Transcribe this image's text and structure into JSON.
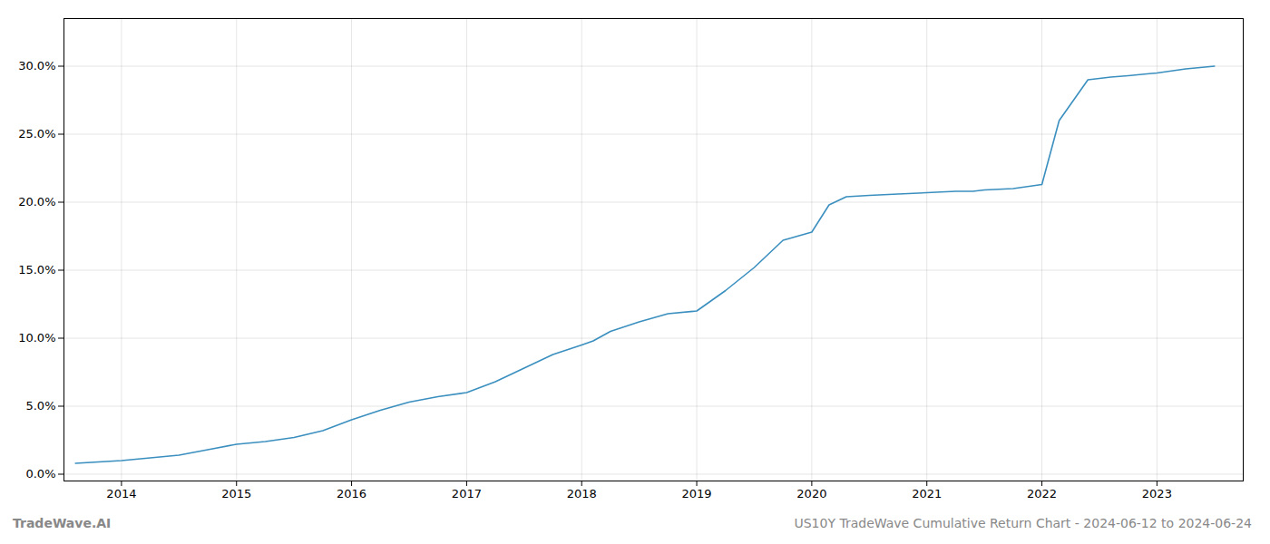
{
  "chart_data": {
    "type": "line",
    "title": "US10Y TradeWave Cumulative Return Chart - 2024-06-12 to 2024-06-24",
    "annotations": [
      "TradeWave.AI"
    ],
    "color": "#3a8fbf",
    "grid": true,
    "x": [
      2013.6,
      2014.0,
      2014.25,
      2014.5,
      2014.75,
      2015.0,
      2015.25,
      2015.5,
      2015.75,
      2016.0,
      2016.25,
      2016.5,
      2016.75,
      2017.0,
      2017.25,
      2017.5,
      2017.75,
      2018.0,
      2018.1,
      2018.25,
      2018.5,
      2018.75,
      2019.0,
      2019.25,
      2019.5,
      2019.75,
      2020.0,
      2020.15,
      2020.3,
      2020.5,
      2020.75,
      2021.0,
      2021.25,
      2021.4,
      2021.5,
      2021.75,
      2022.0,
      2022.15,
      2022.4,
      2022.6,
      2022.75,
      2023.0,
      2023.25,
      2023.5
    ],
    "values": [
      0.008,
      0.01,
      0.012,
      0.014,
      0.018,
      0.022,
      0.024,
      0.027,
      0.032,
      0.04,
      0.047,
      0.053,
      0.057,
      0.06,
      0.068,
      0.078,
      0.088,
      0.095,
      0.098,
      0.105,
      0.112,
      0.118,
      0.12,
      0.135,
      0.152,
      0.172,
      0.178,
      0.198,
      0.204,
      0.205,
      0.206,
      0.207,
      0.208,
      0.208,
      0.209,
      0.21,
      0.213,
      0.26,
      0.29,
      0.292,
      0.293,
      0.295,
      0.298,
      0.3
    ],
    "xlim": [
      2013.5,
      2023.75
    ],
    "ylim": [
      -0.005,
      0.335
    ],
    "xticks": [
      2014,
      2015,
      2016,
      2017,
      2018,
      2019,
      2020,
      2021,
      2022,
      2023
    ],
    "yticks": [
      {
        "value": 0.0,
        "label": "0.0%"
      },
      {
        "value": 0.05,
        "label": "5.0%"
      },
      {
        "value": 0.1,
        "label": "10.0%"
      },
      {
        "value": 0.15,
        "label": "15.0%"
      },
      {
        "value": 0.2,
        "label": "20.0%"
      },
      {
        "value": 0.25,
        "label": "25.0%"
      },
      {
        "value": 0.3,
        "label": "30.0%"
      }
    ]
  }
}
